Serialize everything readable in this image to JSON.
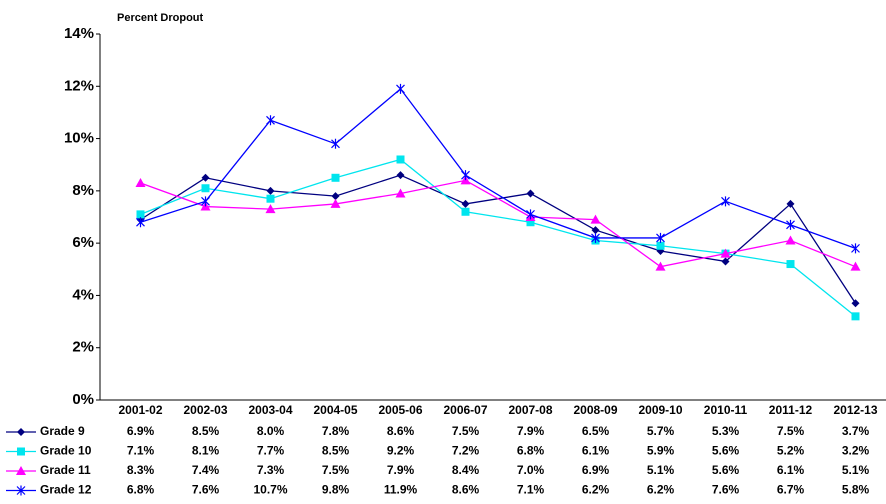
{
  "chart_data": {
    "type": "line",
    "title": "Percent Dropout",
    "categories": [
      "2001-02",
      "2002-03",
      "2003-04",
      "2004-05",
      "2005-06",
      "2006-07",
      "2007-08",
      "2008-09",
      "2009-10",
      "2010-11",
      "2011-12",
      "2012-13"
    ],
    "series": [
      {
        "name": "Grade 9",
        "color": "#000080",
        "marker": "diamond",
        "values": [
          6.9,
          8.5,
          8.0,
          7.8,
          8.6,
          7.5,
          7.9,
          6.5,
          5.7,
          5.3,
          7.5,
          3.7
        ],
        "value_labels": [
          "6.9%",
          "8.5%",
          "8.0%",
          "7.8%",
          "8.6%",
          "7.5%",
          "7.9%",
          "6.5%",
          "5.7%",
          "5.3%",
          "7.5%",
          "3.7%"
        ]
      },
      {
        "name": "Grade 10",
        "color": "#00e5ee",
        "marker": "square",
        "values": [
          7.1,
          8.1,
          7.7,
          8.5,
          9.2,
          7.2,
          6.8,
          6.1,
          5.9,
          5.6,
          5.2,
          3.2
        ],
        "value_labels": [
          "7.1%",
          "8.1%",
          "7.7%",
          "8.5%",
          "9.2%",
          "7.2%",
          "6.8%",
          "6.1%",
          "5.9%",
          "5.6%",
          "5.2%",
          "3.2%"
        ]
      },
      {
        "name": "Grade 11",
        "color": "#ff00ff",
        "marker": "triangle",
        "values": [
          8.3,
          7.4,
          7.3,
          7.5,
          7.9,
          8.4,
          7.0,
          6.9,
          5.1,
          5.6,
          6.1,
          5.1
        ],
        "value_labels": [
          "8.3%",
          "7.4%",
          "7.3%",
          "7.5%",
          "7.9%",
          "8.4%",
          "7.0%",
          "6.9%",
          "5.1%",
          "5.6%",
          "6.1%",
          "5.1%"
        ]
      },
      {
        "name": "Grade 12",
        "color": "#0000ff",
        "marker": "star",
        "values": [
          6.8,
          7.6,
          10.7,
          9.8,
          11.9,
          8.6,
          7.1,
          6.2,
          6.2,
          7.6,
          6.7,
          5.8
        ],
        "value_labels": [
          "6.8%",
          "7.6%",
          "10.7%",
          "9.8%",
          "11.9%",
          "8.6%",
          "7.1%",
          "6.2%",
          "6.2%",
          "7.6%",
          "6.7%",
          "5.8%"
        ]
      }
    ],
    "ylim": [
      0,
      14
    ],
    "yticks": [
      {
        "value": 0,
        "label": "0%"
      },
      {
        "value": 2,
        "label": "2%"
      },
      {
        "value": 4,
        "label": "4%"
      },
      {
        "value": 6,
        "label": "6%"
      },
      {
        "value": 8,
        "label": "8%"
      },
      {
        "value": 10,
        "label": "10%"
      },
      {
        "value": 12,
        "label": "12%"
      },
      {
        "value": 14,
        "label": "14%"
      }
    ],
    "grid": false
  }
}
